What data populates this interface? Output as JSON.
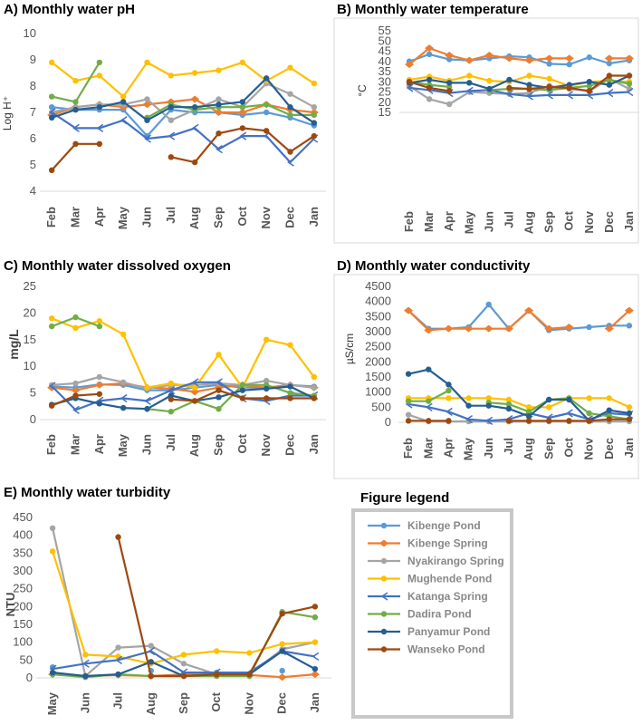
{
  "figure": {
    "months12": [
      "Feb",
      "Mar",
      "Apr",
      "May",
      "Jun",
      "Jul",
      "Aug",
      "Sep",
      "Oct",
      "Nov",
      "Dec",
      "Jan"
    ],
    "months9": [
      "May",
      "Jun",
      "Jul",
      "Aug",
      "Sep",
      "Oct",
      "Nov",
      "Dec",
      "Jan"
    ],
    "series_colors": {
      "Kibenge Pond": "#5B9BD5",
      "Kibenge Spring": "#ED7D31",
      "Nyakirango Spring": "#A5A5A5",
      "Mughende Pond": "#FFC000",
      "Katanga Spring": "#4472C4",
      "Dadira Pond": "#70AD47",
      "Panyamur Pond": "#255E91",
      "Wanseko Pond": "#9E480E"
    }
  },
  "legend": {
    "title": "Figure legend",
    "items": [
      "Kibenge Pond",
      "Kibenge Spring",
      "Nyakirango Spring",
      "Mughende Pond",
      "Katanga Spring",
      "Dadira Pond",
      "Panyamur Pond",
      "Wanseko Pond"
    ]
  },
  "chart_data": [
    {
      "id": "A",
      "type": "line",
      "title": "A) Monthly water pH",
      "ylabel": "Log H⁺",
      "ylim": [
        4,
        10
      ],
      "yticks": [
        4,
        5,
        6,
        7,
        8,
        9,
        10
      ],
      "categories": [
        "Feb",
        "Mar",
        "Apr",
        "May",
        "Jun",
        "Jul",
        "Aug",
        "Sep",
        "Oct",
        "Nov",
        "Dec",
        "Jan"
      ],
      "series": [
        {
          "name": "Kibenge Pond",
          "values": [
            7.2,
            7.1,
            7.1,
            7.1,
            6.1,
            7.1,
            7.0,
            7.0,
            6.9,
            7.0,
            6.8,
            6.5
          ]
        },
        {
          "name": "Kibenge Spring",
          "values": [
            6.9,
            7.2,
            7.3,
            7.2,
            7.3,
            7.4,
            7.5,
            7.0,
            7.0,
            7.3,
            7.1,
            7.0
          ]
        },
        {
          "name": "Nyakirango Spring",
          "values": [
            7.0,
            7.2,
            7.3,
            7.3,
            7.5,
            6.7,
            7.1,
            7.5,
            7.2,
            8.1,
            7.7,
            7.2
          ]
        },
        {
          "name": "Mughende Pond",
          "values": [
            8.9,
            8.2,
            8.4,
            7.6,
            8.9,
            8.4,
            8.5,
            8.6,
            8.9,
            8.2,
            8.7,
            8.1
          ]
        },
        {
          "name": "Katanga Spring",
          "values": [
            7.0,
            6.4,
            6.4,
            6.7,
            6.0,
            6.1,
            6.4,
            5.6,
            6.1,
            6.1,
            5.1,
            6.0
          ]
        },
        {
          "name": "Dadira Pond",
          "values": [
            7.6,
            7.4,
            8.9,
            null,
            6.8,
            7.3,
            7.1,
            7.2,
            7.2,
            7.3,
            6.9,
            6.9
          ]
        },
        {
          "name": "Panyamur Pond",
          "values": [
            6.8,
            7.1,
            7.2,
            7.4,
            6.7,
            7.2,
            7.2,
            7.3,
            7.4,
            8.3,
            7.2,
            6.6
          ]
        },
        {
          "name": "Wanseko Pond",
          "values": [
            4.8,
            5.8,
            5.8,
            null,
            null,
            5.3,
            5.1,
            6.2,
            6.4,
            6.3,
            5.5,
            6.1
          ]
        }
      ]
    },
    {
      "id": "B",
      "type": "line",
      "title": "B) Monthly water temperature",
      "ylabel": "°C",
      "ylim": [
        15,
        55
      ],
      "yticks": [
        15,
        20,
        25,
        30,
        35,
        40,
        45,
        50,
        55
      ],
      "categories": [
        "Feb",
        "Mar",
        "Apr",
        "May",
        "Jun",
        "Jul",
        "Aug",
        "Sep",
        "Oct",
        "Nov",
        "Dec",
        "Jan"
      ],
      "series": [
        {
          "name": "Kibenge Pond",
          "values": [
            40,
            43.5,
            41,
            40.5,
            41.5,
            42.5,
            42,
            38.8,
            38.5,
            42,
            39,
            40.5
          ]
        },
        {
          "name": "Kibenge Spring",
          "values": [
            38.5,
            46.5,
            43,
            40.5,
            43,
            41.5,
            40.5,
            41.5,
            41.5,
            null,
            41.5,
            41.5
          ]
        },
        {
          "name": "Nyakirango Spring",
          "values": [
            28,
            21.5,
            19,
            25,
            24.5,
            24,
            24.5,
            28,
            26.5,
            25.5,
            31.5,
            26.5
          ]
        },
        {
          "name": "Mughende Pond",
          "values": [
            31,
            32.5,
            30.5,
            33,
            30.5,
            30,
            33,
            31.5,
            28,
            30,
            30.5,
            30
          ]
        },
        {
          "name": "Katanga Spring",
          "values": [
            27,
            26,
            24.5,
            25.5,
            26,
            24,
            23,
            23.5,
            23.5,
            23.5,
            24.5,
            25
          ]
        },
        {
          "name": "Dadira Pond",
          "values": [
            30,
            28.5,
            27.5,
            null,
            26,
            26.5,
            26.5,
            26,
            27,
            28,
            31,
            29
          ]
        },
        {
          "name": "Panyamur Pond",
          "values": [
            29.5,
            31,
            29.5,
            29.5,
            26.5,
            31,
            28.5,
            27,
            28.5,
            30,
            28.5,
            33
          ]
        },
        {
          "name": "Wanseko Pond",
          "values": [
            30,
            27,
            25.5,
            null,
            null,
            27,
            26.5,
            27.5,
            27,
            25.5,
            33,
            33
          ]
        }
      ]
    },
    {
      "id": "C",
      "type": "line",
      "title": "C) Monthly water dissolved oxygen",
      "ylabel": "mg/L",
      "ylim": [
        0,
        25
      ],
      "yticks": [
        0,
        5,
        10,
        15,
        20,
        25
      ],
      "categories": [
        "Feb",
        "Mar",
        "Apr",
        "May",
        "Jun",
        "Jul",
        "Aug",
        "Sep",
        "Oct",
        "Nov",
        "Dec",
        "Jan"
      ],
      "series": [
        {
          "name": "Kibenge Pond",
          "values": [
            6.2,
            6.0,
            6.6,
            6.5,
            5.5,
            5.5,
            6.0,
            6.5,
            6.0,
            6.0,
            6.5,
            6.2
          ]
        },
        {
          "name": "Kibenge Spring",
          "values": [
            6.0,
            5.5,
            6.5,
            6.8,
            6.0,
            5.8,
            5.2,
            6.0,
            6.5,
            6.0,
            6.5,
            6.0
          ]
        },
        {
          "name": "Nyakirango Spring",
          "values": [
            6.5,
            6.8,
            8.0,
            7.0,
            5.8,
            6.5,
            6.5,
            6.8,
            6.5,
            7.3,
            6.5,
            6.0
          ]
        },
        {
          "name": "Mughende Pond",
          "values": [
            19.0,
            17.2,
            18.5,
            16.0,
            6.0,
            6.8,
            6.0,
            12.2,
            6.0,
            15.0,
            14.0,
            8.0
          ]
        },
        {
          "name": "Katanga Spring",
          "values": [
            6.3,
            1.8,
            3.5,
            4.0,
            3.5,
            5.5,
            7.0,
            7.0,
            4.0,
            3.5,
            4.5,
            4.5
          ]
        },
        {
          "name": "Dadira Pond",
          "values": [
            17.5,
            19.2,
            17.5,
            null,
            2.0,
            1.5,
            3.5,
            2.0,
            6.5,
            6.5,
            5.0,
            4.5
          ]
        },
        {
          "name": "Panyamur Pond",
          "values": [
            2.8,
            4.0,
            3.0,
            2.2,
            2.0,
            4.5,
            3.5,
            4.2,
            5.5,
            5.8,
            6.2,
            4.0
          ]
        },
        {
          "name": "Wanseko Pond",
          "values": [
            2.6,
            4.5,
            4.8,
            null,
            null,
            3.8,
            3.5,
            5.5,
            4.0,
            4.0,
            4.0,
            4.0
          ]
        }
      ]
    },
    {
      "id": "D",
      "type": "line",
      "title": "D) Monthly water conductivity",
      "ylabel": "µS/cm",
      "ylim": [
        0,
        4500
      ],
      "yticks": [
        0,
        500,
        1000,
        1500,
        2000,
        2500,
        3000,
        3500,
        4000,
        4500
      ],
      "categories": [
        "Feb",
        "Mar",
        "Apr",
        "May",
        "Jun",
        "Jul",
        "Aug",
        "Sep",
        "Oct",
        "Nov",
        "Dec",
        "Jan"
      ],
      "series": [
        {
          "name": "Kibenge Pond",
          "values": [
            3700,
            3100,
            3100,
            3150,
            3900,
            3100,
            3700,
            3050,
            3100,
            3150,
            3200,
            3200
          ]
        },
        {
          "name": "Kibenge Spring",
          "values": [
            3700,
            3050,
            3100,
            3100,
            3100,
            3100,
            3700,
            3100,
            3150,
            null,
            3100,
            3700
          ]
        },
        {
          "name": "Nyakirango Spring",
          "values": [
            250,
            30,
            30,
            30,
            30,
            30,
            30,
            30,
            30,
            30,
            30,
            30
          ]
        },
        {
          "name": "Mughende Pond",
          "values": [
            800,
            800,
            800,
            800,
            800,
            750,
            500,
            500,
            800,
            800,
            800,
            500
          ]
        },
        {
          "name": "Katanga Spring",
          "values": [
            600,
            500,
            350,
            100,
            50,
            100,
            300,
            150,
            300,
            100,
            300,
            250
          ]
        },
        {
          "name": "Dadira Pond",
          "values": [
            700,
            700,
            1050,
            null,
            650,
            600,
            350,
            750,
            800,
            300,
            200,
            100
          ]
        },
        {
          "name": "Panyamur Pond",
          "values": [
            1600,
            1750,
            1250,
            550,
            550,
            450,
            200,
            750,
            750,
            50,
            400,
            300
          ]
        },
        {
          "name": "Wanseko Pond",
          "values": [
            50,
            50,
            50,
            null,
            null,
            50,
            50,
            50,
            50,
            50,
            100,
            100
          ]
        }
      ]
    },
    {
      "id": "E",
      "type": "line",
      "title": "E) Monthly water turbidity",
      "ylabel": "NTU",
      "ylim": [
        0,
        450
      ],
      "yticks": [
        0,
        50,
        100,
        150,
        200,
        250,
        300,
        350,
        400,
        450
      ],
      "categories": [
        "May",
        "Jun",
        "Jul",
        "Aug",
        "Sep",
        "Oct",
        "Nov",
        "Dec",
        "Jan"
      ],
      "series": [
        {
          "name": "Kibenge Pond",
          "values": [
            30,
            null,
            null,
            20,
            null,
            15,
            null,
            20,
            null
          ]
        },
        {
          "name": "Kibenge Spring",
          "values": [
            10,
            5,
            8,
            5,
            10,
            10,
            8,
            2,
            10
          ]
        },
        {
          "name": "Nyakirango Spring",
          "values": [
            420,
            5,
            85,
            90,
            40,
            10,
            10,
            80,
            100
          ]
        },
        {
          "name": "Mughende Pond",
          "values": [
            355,
            65,
            60,
            40,
            65,
            75,
            70,
            95,
            100
          ]
        },
        {
          "name": "Katanga Spring",
          "values": [
            25,
            40,
            50,
            75,
            15,
            15,
            15,
            75,
            60
          ]
        },
        {
          "name": "Dadira Pond",
          "values": [
            10,
            2,
            10,
            5,
            5,
            5,
            5,
            185,
            170
          ]
        },
        {
          "name": "Panyamur Pond",
          "values": [
            15,
            5,
            10,
            45,
            5,
            10,
            10,
            75,
            25
          ]
        },
        {
          "name": "Wanseko Pond",
          "values": [
            null,
            null,
            395,
            5,
            5,
            10,
            10,
            180,
            200
          ]
        }
      ]
    }
  ]
}
